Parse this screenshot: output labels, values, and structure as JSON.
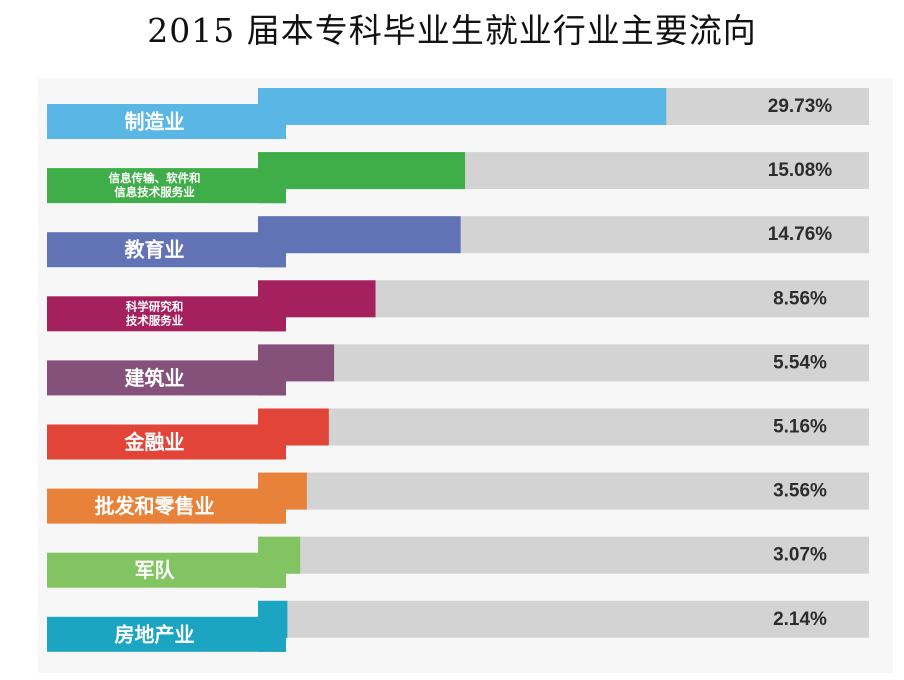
{
  "title": "2015 届本专科毕业生就业行业主要流向",
  "chart_data": {
    "type": "bar",
    "title": "2015 届本专科毕业生就业行业主要流向",
    "categories": [
      [
        "制造业"
      ],
      [
        "信息传输、软件和",
        "信息技术服务业"
      ],
      [
        "教育业"
      ],
      [
        "科学研究和",
        "技术服务业"
      ],
      [
        "建筑业"
      ],
      [
        "金融业"
      ],
      [
        "批发和零售业"
      ],
      [
        "军队"
      ],
      [
        "房地产业"
      ]
    ],
    "values": [
      29.73,
      15.08,
      14.76,
      8.56,
      5.54,
      5.16,
      3.56,
      3.07,
      2.14
    ],
    "value_labels": [
      "29.73%",
      "15.08%",
      "14.76%",
      "8.56%",
      "5.54%",
      "5.16%",
      "3.56%",
      "3.07%",
      "2.14%"
    ],
    "colors": [
      "#5ab6e4",
      "#3fae49",
      "#6173b5",
      "#a5215e",
      "#85507a",
      "#e24438",
      "#e8823a",
      "#82c462",
      "#1ba5c2"
    ],
    "track_color": "#d3d3d3",
    "xlabel": "",
    "ylabel": "",
    "xlim": [
      0,
      44.5
    ],
    "unit": "%"
  }
}
